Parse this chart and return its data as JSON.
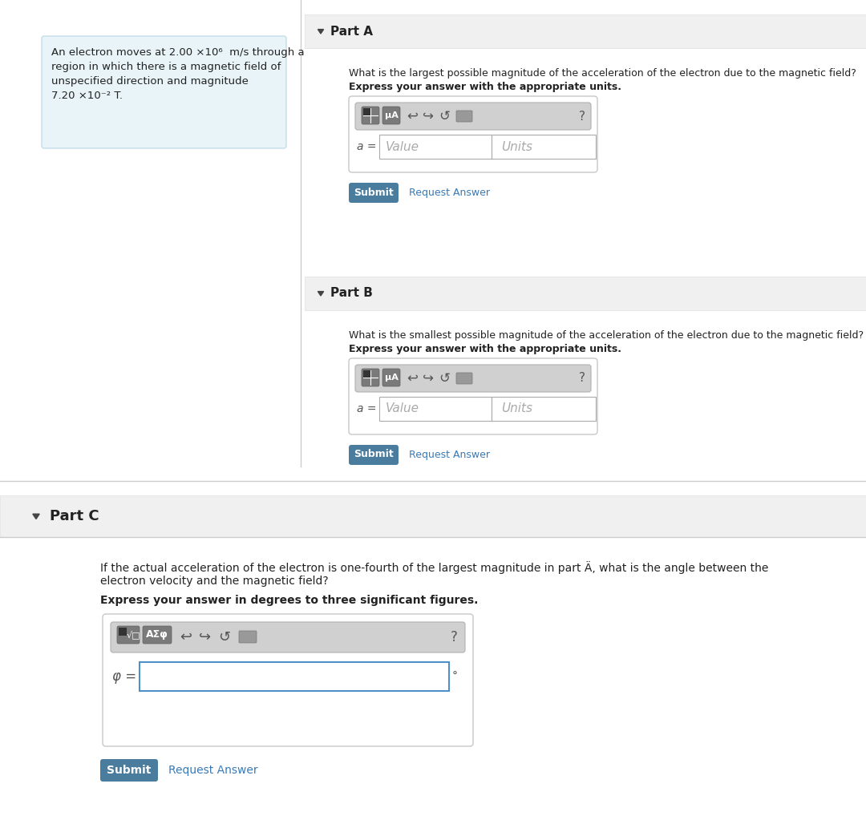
{
  "bg_color": "#ffffff",
  "left_panel_bg": "#e8f4f8",
  "left_panel_border": "#c5dde8",
  "part_header_bg": "#f0f0f0",
  "part_header_border": "#e0e0e0",
  "body_bg": "#ffffff",
  "submit_color": "#4a7c9e",
  "submit_text_color": "#ffffff",
  "link_color": "#3a7ab5",
  "toolbar_bg": "#d0d0d0",
  "toolbar_border": "#b0b0b0",
  "icon_bg": "#7a7a7a",
  "icon_border": "#606060",
  "input_border_light": "#aaaaaa",
  "input_border_blue": "#5090c8",
  "placeholder_color": "#aaaaaa",
  "text_color": "#222222",
  "label_color": "#555555",
  "separator_color": "#cccccc",
  "part_a_q1": "What is the largest possible magnitude of the acceleration of the electron due to the magnetic field?",
  "part_a_q2": "Express your answer with the appropriate units.",
  "part_b_q1": "What is the smallest possible magnitude of the acceleration of the electron due to the magnetic field?",
  "part_b_q2": "Express your answer with the appropriate units.",
  "part_c_q1a": "If the actual acceleration of the electron is one-fourth of the largest magnitude in part Ä, what is the angle between the",
  "part_c_q1b": "electron velocity and the magnetic field?",
  "part_c_q2": "Express your answer in degrees to three significant figures."
}
